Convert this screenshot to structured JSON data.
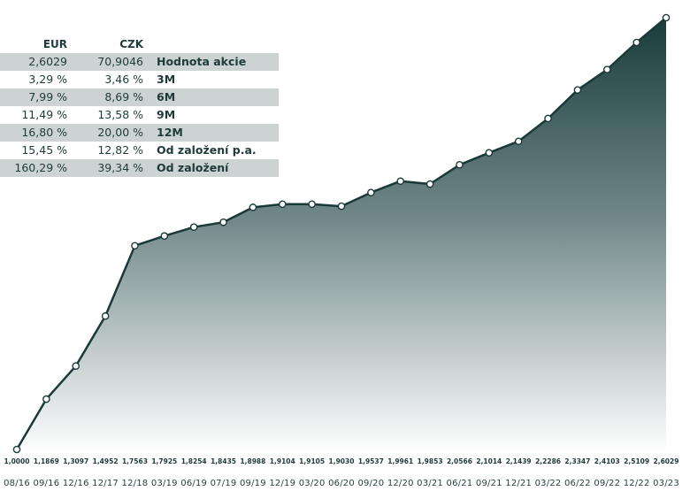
{
  "table": {
    "header_eur": "EUR",
    "header_czk": "CZK",
    "rows": [
      {
        "eur": "2,6029",
        "czk": "70,9046",
        "label": "Hodnota akcie"
      },
      {
        "eur": "3,29 %",
        "czk": "3,46 %",
        "label": "3M"
      },
      {
        "eur": "7,99 %",
        "czk": "8,69 %",
        "label": "6M"
      },
      {
        "eur": "11,49 %",
        "czk": "13,58 %",
        "label": "9M"
      },
      {
        "eur": "16,80 %",
        "czk": "20,00 %",
        "label": "12M"
      },
      {
        "eur": "15,45 %",
        "czk": "12,82 %",
        "label": "Od založení p.a."
      },
      {
        "eur": "160,29 %",
        "czk": "39,34 %",
        "label": "Od založení"
      }
    ]
  },
  "chart_data": {
    "type": "area",
    "title": "",
    "xlabel": "",
    "ylabel": "",
    "x": [
      "08/16",
      "09/16",
      "12/16",
      "12/17",
      "12/18",
      "03/19",
      "06/19",
      "07/19",
      "09/19",
      "12/19",
      "03/20",
      "06/20",
      "09/20",
      "12/20",
      "03/21",
      "06/21",
      "09/21",
      "12/21",
      "03/22",
      "06/22",
      "09/22",
      "12/22",
      "03/23"
    ],
    "values": [
      1.0,
      1.1869,
      1.3097,
      1.4952,
      1.7563,
      1.7925,
      1.8254,
      1.8435,
      1.8988,
      1.9104,
      1.9105,
      1.903,
      1.9537,
      1.9961,
      1.9853,
      2.0566,
      2.1014,
      2.1439,
      2.2286,
      2.3347,
      2.4103,
      2.5109,
      2.6029
    ],
    "value_labels": [
      "1,0000",
      "1,1869",
      "1,3097",
      "1,4952",
      "1,7563",
      "1,7925",
      "1,8254",
      "1,8435",
      "1,8988",
      "1,9104",
      "1,9105",
      "1,9030",
      "1,9537",
      "1,9961",
      "1,9853",
      "2,0566",
      "2,1014",
      "2,1439",
      "2,2286",
      "2,3347",
      "2,4103",
      "2,5109",
      "2,6029"
    ],
    "ylim": [
      1.0,
      2.6029
    ],
    "grid": false,
    "colors": {
      "line": "#1a3a3a",
      "fill_top": "#1a3c3c",
      "fill_bottom": "#ffffff",
      "marker_fill": "#ffffff"
    }
  }
}
